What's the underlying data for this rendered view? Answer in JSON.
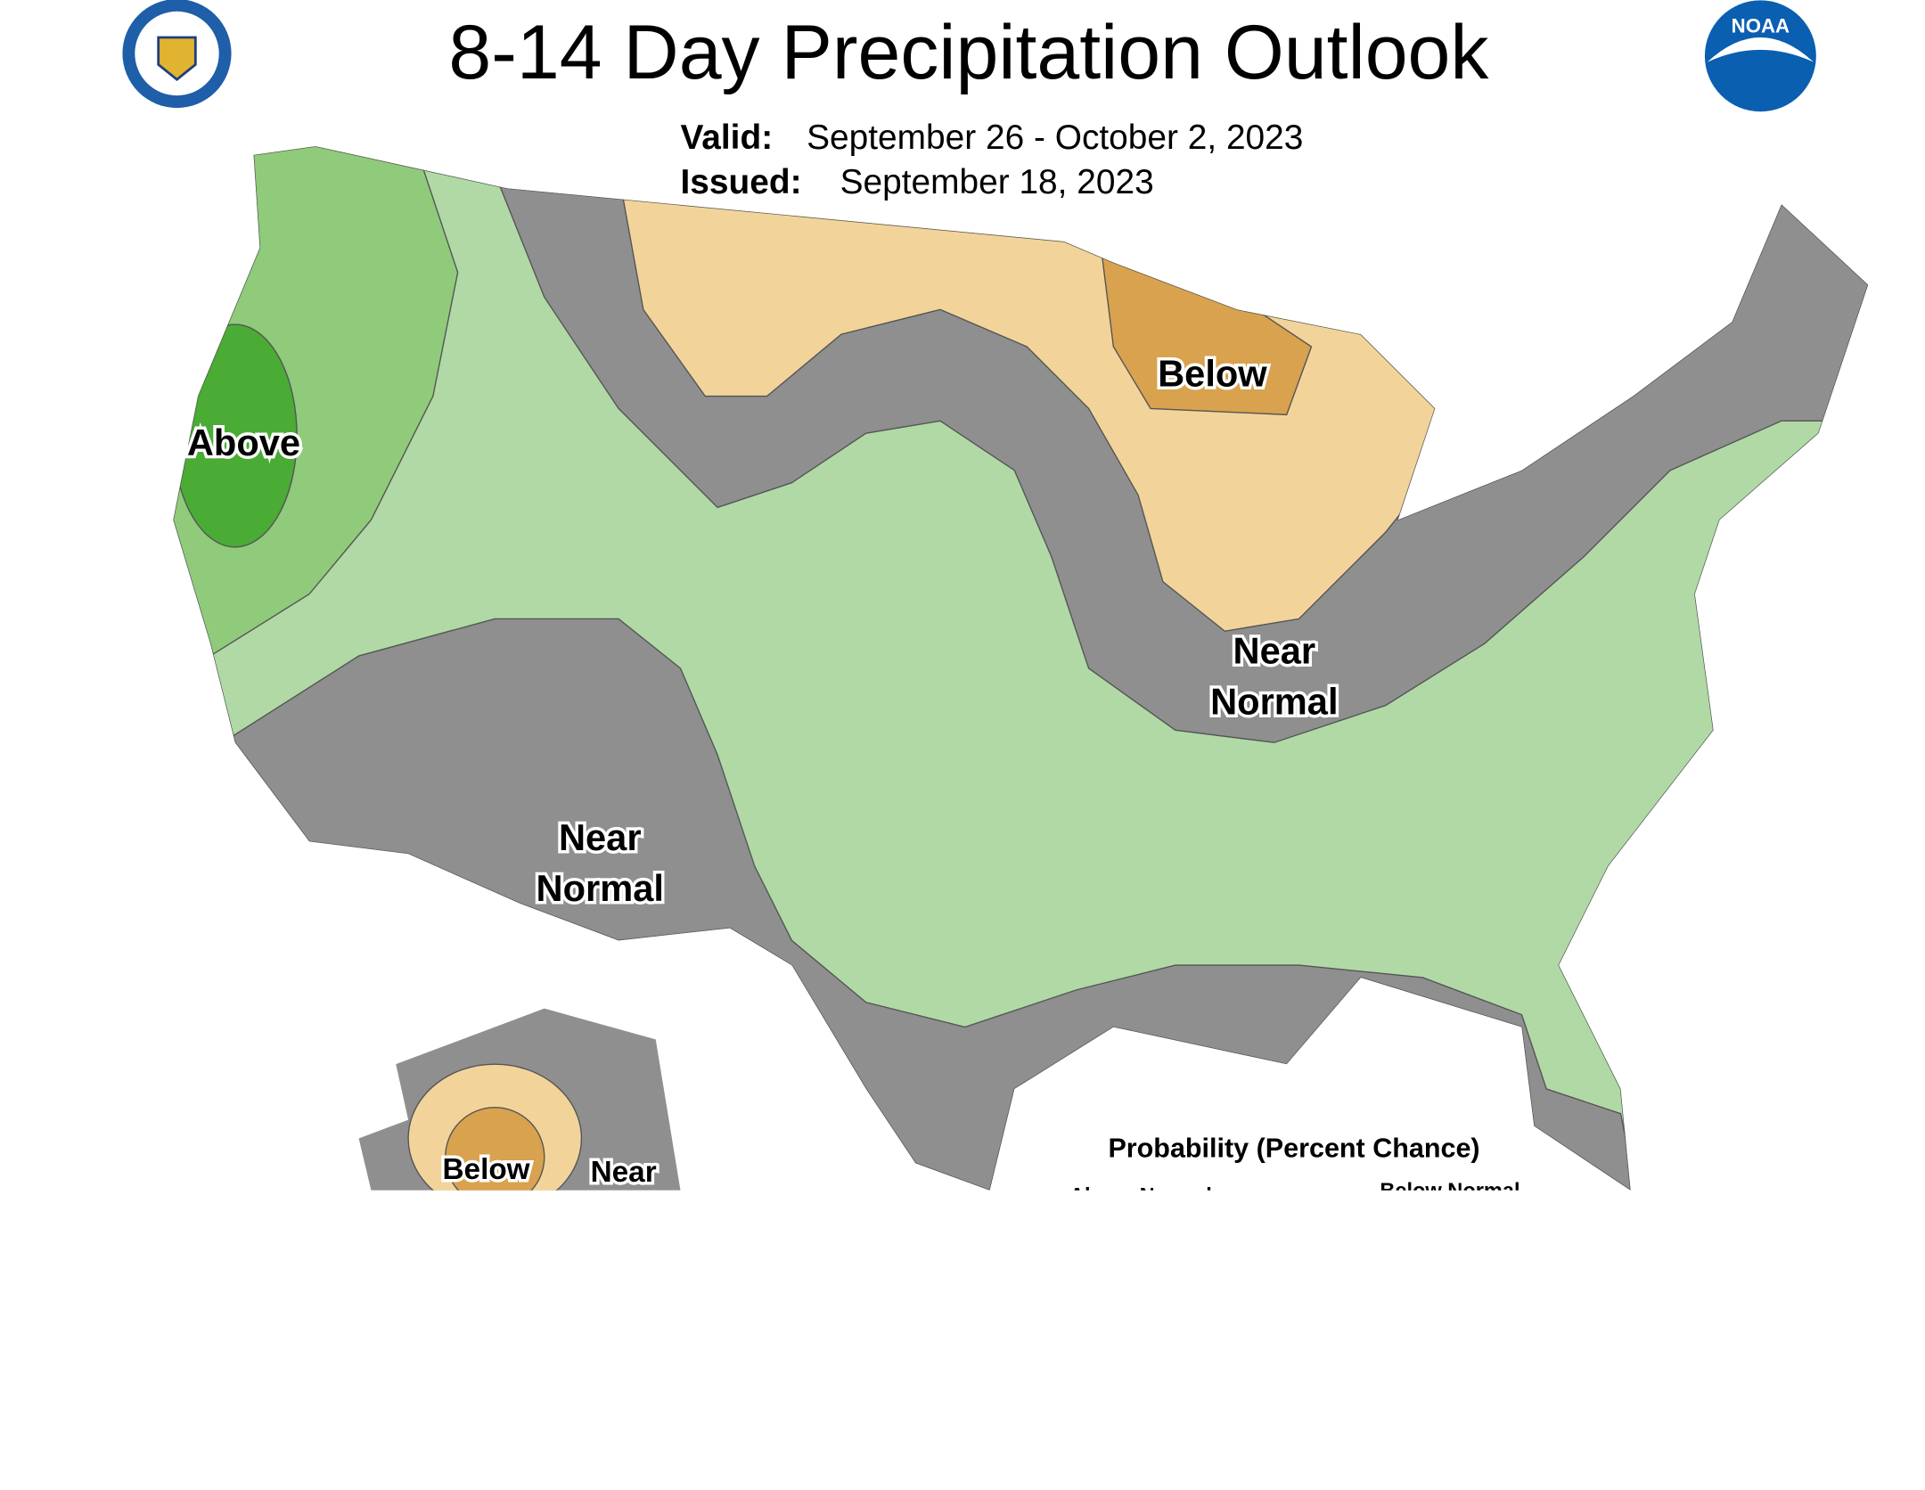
{
  "header": {
    "title": "8-14 Day Precipitation Outlook",
    "valid_label": "Valid:",
    "valid_dates": "September 26 - October 2, 2023",
    "issued_label": "Issued:",
    "issued_date": "September 18, 2023",
    "noaa_logo": "NOAA"
  },
  "map_labels": {
    "above_west": "Above",
    "below_great_lakes": "Below",
    "near_normal_midwest": [
      "Near",
      "Normal"
    ],
    "near_normal_southwest": [
      "Near",
      "Normal"
    ],
    "alaska_below": "Below",
    "alaska_near": "Near"
  },
  "legend": {
    "title": "Probability (Percent Chance)",
    "above_heading": "Above Normal",
    "below_heading": "Below Normal"
  }
}
